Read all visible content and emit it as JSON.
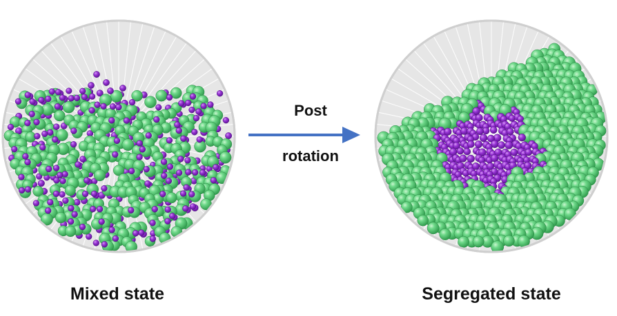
{
  "labels": {
    "mixed": "Mixed state",
    "segregated": "Segregated state",
    "arrow_top": "Post",
    "arrow_bottom": "rotation"
  },
  "colors": {
    "large_particle": "#4cc46a",
    "small_particle": "#8a25c9",
    "drum_background": "#e6e6e6",
    "drum_rim": "#cfcfcf",
    "arrow": "#4472c4"
  },
  "icons": {
    "arrow": "arrow-right-icon"
  }
}
